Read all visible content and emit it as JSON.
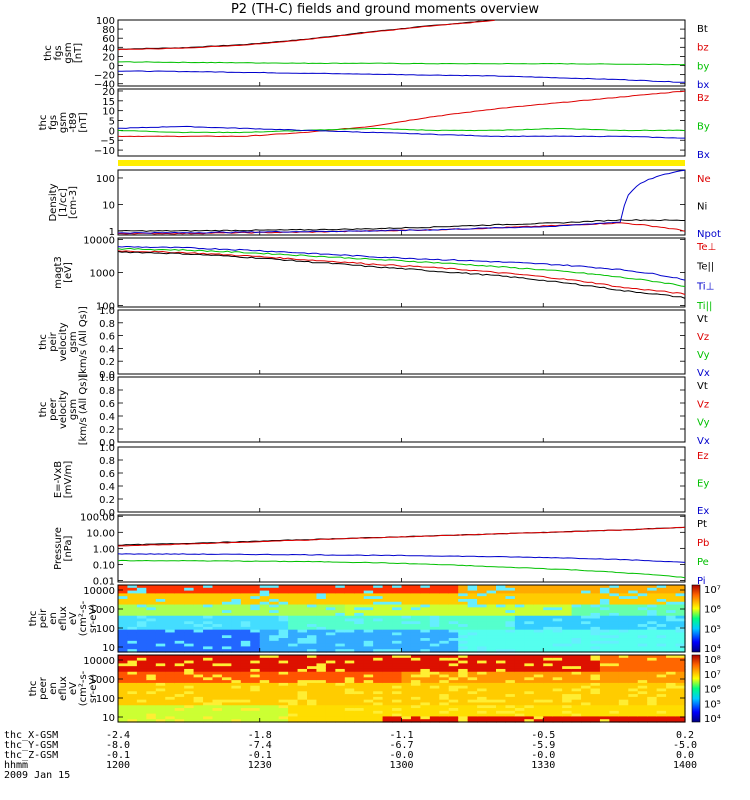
{
  "title": "P2 (TH-C) fields and ground moments overview",
  "colors": {
    "black": "#000000",
    "red": "#dd0000",
    "green": "#00c000",
    "blue": "#0000cc",
    "yellow": "#ffee00"
  },
  "chart_data": [
    {
      "id": "fgs",
      "type": "line",
      "ylabel": [
        "thc",
        "fgs",
        "gsm",
        "[nT]"
      ],
      "yticks": [
        "100",
        "80",
        "60",
        "40",
        "20",
        "0",
        "−20",
        "−40"
      ],
      "ylim": [
        -45,
        100
      ],
      "x": [
        1200,
        1215,
        1230,
        1245,
        1300,
        1310,
        1320,
        1330,
        1345,
        1400
      ],
      "series": [
        {
          "name": "Bt",
          "color": "black",
          "values": [
            36,
            39,
            46,
            58,
            74,
            88,
            100,
            null,
            null,
            null
          ]
        },
        {
          "name": "bz",
          "color": "red",
          "values": [
            35,
            38,
            45,
            57,
            73,
            87,
            99,
            null,
            null,
            null
          ]
        },
        {
          "name": "by",
          "color": "green",
          "values": [
            8,
            7,
            6,
            5,
            5,
            4,
            4,
            4,
            3,
            2
          ]
        },
        {
          "name": "bx",
          "color": "blue",
          "values": [
            -12,
            -13,
            -15,
            -17,
            -19,
            -21,
            -23,
            -27,
            -31,
            -37
          ]
        }
      ]
    },
    {
      "id": "fgs-t89",
      "type": "line",
      "ylabel": [
        "thc",
        "fgs",
        "gsm",
        "-t89",
        "[nT]"
      ],
      "yticks": [
        "20",
        "15",
        "10",
        "5",
        "0",
        "−5",
        "−10"
      ],
      "ylim": [
        -13,
        21
      ],
      "x": [
        1200,
        1215,
        1230,
        1245,
        1300,
        1310,
        1320,
        1330,
        1345,
        1400
      ],
      "series": [
        {
          "name": "Bz",
          "color": "red",
          "values": [
            -3,
            -3,
            -3,
            -1,
            2,
            7,
            11,
            14,
            17,
            20
          ]
        },
        {
          "name": "By",
          "color": "green",
          "values": [
            0,
            -1,
            -1,
            0,
            1,
            0,
            0,
            1,
            0,
            0
          ]
        },
        {
          "name": "Bx",
          "color": "blue",
          "values": [
            1,
            2,
            1,
            0,
            -1,
            -2,
            -3,
            -3,
            -3,
            -4
          ]
        }
      ]
    },
    {
      "id": "density",
      "type": "line",
      "log": true,
      "ylabel": [
        "Density",
        "[1/cc]",
        "[cm-3]"
      ],
      "yticks": [
        "100",
        "10",
        "1"
      ],
      "ylim": [
        0.7,
        200
      ],
      "x": [
        1200,
        1215,
        1230,
        1245,
        1300,
        1310,
        1320,
        1330,
        1345,
        1400
      ],
      "series": [
        {
          "name": "Ne",
          "color": "red",
          "values": [
            0.8,
            0.8,
            0.85,
            0.9,
            1.0,
            1.1,
            1.3,
            1.6,
            2.0,
            1.0
          ]
        },
        {
          "name": "Ni",
          "color": "black",
          "values": [
            1.0,
            1.0,
            1.05,
            1.1,
            1.2,
            1.4,
            1.7,
            2.0,
            2.6,
            2.5
          ]
        },
        {
          "name": "Npot",
          "color": "blue",
          "values": [
            0.85,
            0.85,
            0.9,
            0.95,
            1.0,
            1.1,
            1.3,
            1.5,
            2.2,
            200
          ]
        }
      ]
    },
    {
      "id": "temperature",
      "type": "line",
      "log": true,
      "ylabel": [
        "magt3",
        "[eV]"
      ],
      "yticks": [
        "10000",
        "1000",
        "100"
      ],
      "ylim": [
        90,
        11000
      ],
      "x": [
        1200,
        1215,
        1230,
        1245,
        1300,
        1310,
        1320,
        1330,
        1345,
        1400
      ],
      "series": [
        {
          "name": "Te⊥",
          "color": "red",
          "values": [
            4500,
            4000,
            3200,
            2400,
            1800,
            1400,
            1000,
            650,
            350,
            220
          ]
        },
        {
          "name": "Te||",
          "color": "black",
          "values": [
            4200,
            3700,
            2900,
            2100,
            1500,
            1100,
            800,
            500,
            280,
            170
          ]
        },
        {
          "name": "Ti⊥",
          "color": "blue",
          "values": [
            6000,
            5600,
            4800,
            3800,
            3000,
            2500,
            2100,
            1700,
            1200,
            600
          ]
        },
        {
          "name": "Ti||",
          "color": "green",
          "values": [
            5200,
            4800,
            4000,
            3200,
            2500,
            2000,
            1500,
            1100,
            700,
            380
          ]
        }
      ]
    },
    {
      "id": "peir-velocity",
      "type": "line",
      "ylabel": [
        "thc",
        "peir",
        "velocity",
        "gsm",
        "[km/s (All Qs)]"
      ],
      "yticks": [
        "1.0",
        "0.8",
        "0.6",
        "0.4",
        "0.2",
        "0.0"
      ],
      "ylim": [
        0,
        1
      ],
      "series": [
        {
          "name": "Vt",
          "color": "black",
          "values": []
        },
        {
          "name": "Vz",
          "color": "red",
          "values": []
        },
        {
          "name": "Vy",
          "color": "green",
          "values": []
        },
        {
          "name": "Vx",
          "color": "blue",
          "values": []
        }
      ]
    },
    {
      "id": "peer-velocity",
      "type": "line",
      "ylabel": [
        "thc",
        "peer",
        "velocity",
        "gsm",
        "[km/s (All Qs)]"
      ],
      "yticks": [
        "1.0",
        "0.8",
        "0.6",
        "0.4",
        "0.2",
        "0.0"
      ],
      "ylim": [
        0,
        1
      ],
      "series": [
        {
          "name": "Vt",
          "color": "black",
          "values": []
        },
        {
          "name": "Vz",
          "color": "red",
          "values": []
        },
        {
          "name": "Vy",
          "color": "green",
          "values": []
        },
        {
          "name": "Vx",
          "color": "blue",
          "values": []
        }
      ]
    },
    {
      "id": "efield",
      "type": "line",
      "ylabel": [
        "E=-VxB",
        "[mV/m]"
      ],
      "yticks": [
        "1.0",
        "0.8",
        "0.6",
        "0.4",
        "0.2",
        "0.0"
      ],
      "ylim": [
        0,
        1
      ],
      "series": [
        {
          "name": "Ez",
          "color": "red",
          "values": []
        },
        {
          "name": "Ey",
          "color": "green",
          "values": []
        },
        {
          "name": "Ex",
          "color": "blue",
          "values": []
        }
      ]
    },
    {
      "id": "pressure",
      "type": "line",
      "log": true,
      "ylabel": [
        "Pressure",
        "[nPa]"
      ],
      "yticks": [
        "100.00",
        "10.00",
        "1.00",
        "0.10",
        "0.01"
      ],
      "ylim": [
        0.008,
        120
      ],
      "x": [
        1200,
        1215,
        1230,
        1245,
        1300,
        1310,
        1320,
        1330,
        1345,
        1400
      ],
      "series": [
        {
          "name": "Pt",
          "color": "black",
          "values": [
            1.6,
            2.0,
            2.6,
            3.5,
            4.6,
            6.0,
            8.0,
            10.5,
            14,
            20
          ]
        },
        {
          "name": "Pb",
          "color": "red",
          "values": [
            1.4,
            1.8,
            2.4,
            3.3,
            4.5,
            5.9,
            7.9,
            10.4,
            14,
            20
          ]
        },
        {
          "name": "Pe",
          "color": "green",
          "values": [
            0.17,
            0.17,
            0.16,
            0.15,
            0.13,
            0.1,
            0.07,
            0.05,
            0.03,
            0.015
          ]
        },
        {
          "name": "Pi",
          "color": "blue",
          "values": [
            0.45,
            0.44,
            0.42,
            0.4,
            0.37,
            0.34,
            0.3,
            0.26,
            0.2,
            0.13
          ]
        }
      ]
    },
    {
      "id": "peir-eflux",
      "type": "heatmap",
      "ylabel": [
        "thc",
        "peir",
        "en",
        "eflux",
        "eV",
        "(cm²-s-",
        "sr-eV)"
      ],
      "yticks": [
        "10000",
        "1000",
        "100",
        "10"
      ],
      "colorbar": {
        "ticks": [
          "10⁷",
          "10⁶",
          "10⁵",
          "10⁴"
        ]
      }
    },
    {
      "id": "peer-eflux",
      "type": "heatmap",
      "ylabel": [
        "thc",
        "peer",
        "en",
        "eflux",
        "eV",
        "(cm²-s-",
        "sr-eV)"
      ],
      "yticks": [
        "10000",
        "1000",
        "100",
        "10"
      ],
      "colorbar": {
        "ticks": [
          "10⁸",
          "10⁷",
          "10⁶",
          "10⁵",
          "10⁴"
        ]
      }
    }
  ],
  "xaxis": {
    "rows": [
      {
        "label": "thc_X-GSM",
        "values": [
          "-2.4",
          "-1.8",
          "-1.1",
          "-0.5",
          "0.2"
        ]
      },
      {
        "label": "thc_Y-GSM",
        "values": [
          "-8.0",
          "-7.4",
          "-6.7",
          "-5.9",
          "-5.0"
        ]
      },
      {
        "label": "thc_Z-GSM",
        "values": [
          "-0.1",
          "-0.1",
          "-0.0",
          "-0.0",
          "0.0"
        ]
      },
      {
        "label": "hhmm",
        "values": [
          "1200",
          "1230",
          "1300",
          "1330",
          "1400"
        ]
      }
    ],
    "date": "2009 Jan 15"
  }
}
